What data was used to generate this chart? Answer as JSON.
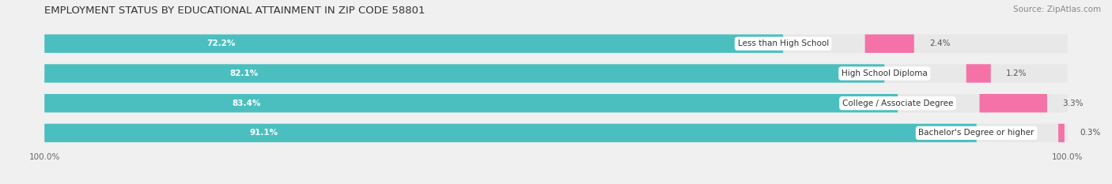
{
  "title": "EMPLOYMENT STATUS BY EDUCATIONAL ATTAINMENT IN ZIP CODE 58801",
  "source": "Source: ZipAtlas.com",
  "categories": [
    "Less than High School",
    "High School Diploma",
    "College / Associate Degree",
    "Bachelor's Degree or higher"
  ],
  "in_labor_force": [
    72.2,
    82.1,
    83.4,
    91.1
  ],
  "unemployed": [
    2.4,
    1.2,
    3.3,
    0.3
  ],
  "labor_force_color": "#4BBFC0",
  "unemployed_color": "#F472A8",
  "bar_height": 0.62,
  "title_fontsize": 9.5,
  "source_fontsize": 7.5,
  "label_fontsize": 7.5,
  "pct_fontsize": 7.5,
  "tick_fontsize": 7.5,
  "legend_fontsize": 8,
  "bg_color": "#f0f0f0",
  "bar_bg_color": "#e0e0e0",
  "track_bg_color": "#e8e8e8"
}
